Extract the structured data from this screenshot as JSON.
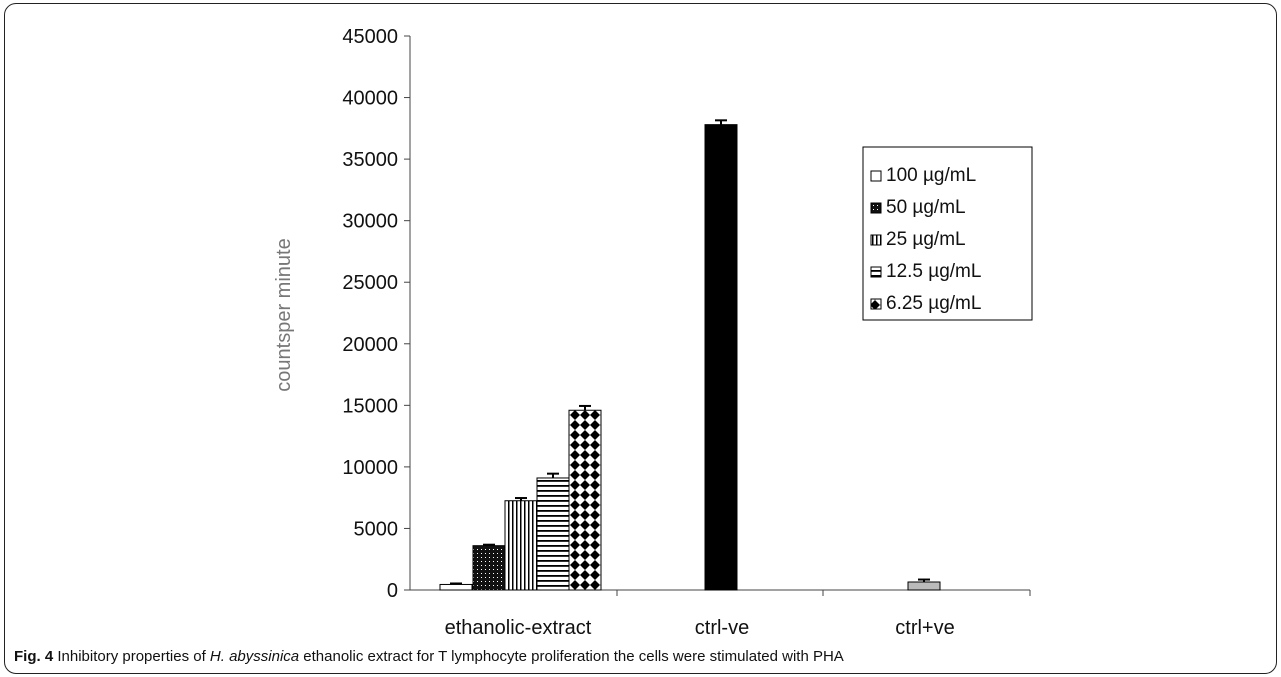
{
  "chart_data": {
    "type": "bar",
    "title": "",
    "xlabel": "",
    "ylabel": "countsper minute",
    "ylim": [
      0,
      45000
    ],
    "yticks": [
      "0",
      "5000",
      "10000",
      "15000",
      "20000",
      "25000",
      "30000",
      "35000",
      "40000",
      "45000"
    ],
    "grid": false,
    "legend_position": "right",
    "groups": [
      {
        "label": "ethanolic-extract",
        "bars": [
          {
            "series": "100 µg/mL",
            "value": 450,
            "error": 80
          },
          {
            "series": "50 µg/mL",
            "value": 3600,
            "error": 80
          },
          {
            "series": "25 µg/mL",
            "value": 7250,
            "error": 220
          },
          {
            "series": "12.5 µg/mL",
            "value": 9100,
            "error": 350
          },
          {
            "series": "6.25 µg/mL",
            "value": 14600,
            "error": 350
          }
        ]
      },
      {
        "label": "ctrl-ve",
        "bars": [
          {
            "series": "ctrl-ve",
            "value": 37800,
            "error": 350
          }
        ]
      },
      {
        "label": "ctrl+ve",
        "bars": [
          {
            "series": "ctrl+ve",
            "value": 650,
            "error": 200
          }
        ]
      }
    ],
    "series": [
      {
        "name": "100 µg/mL",
        "pattern": "white"
      },
      {
        "name": "50 µg/mL",
        "pattern": "dots"
      },
      {
        "name": "25 µg/mL",
        "pattern": "vertical-lines"
      },
      {
        "name": "12.5 µg/mL",
        "pattern": "horizontal-lines"
      },
      {
        "name": "6.25 µg/mL",
        "pattern": "diamonds"
      }
    ]
  },
  "caption": {
    "label": "Fig. 4",
    "text_before": " Inhibitory properties of ",
    "species": "H. abyssinica",
    "text_after": " ethanolic extract for T lymphocyte proliferation the cells were stimulated with PHA"
  }
}
